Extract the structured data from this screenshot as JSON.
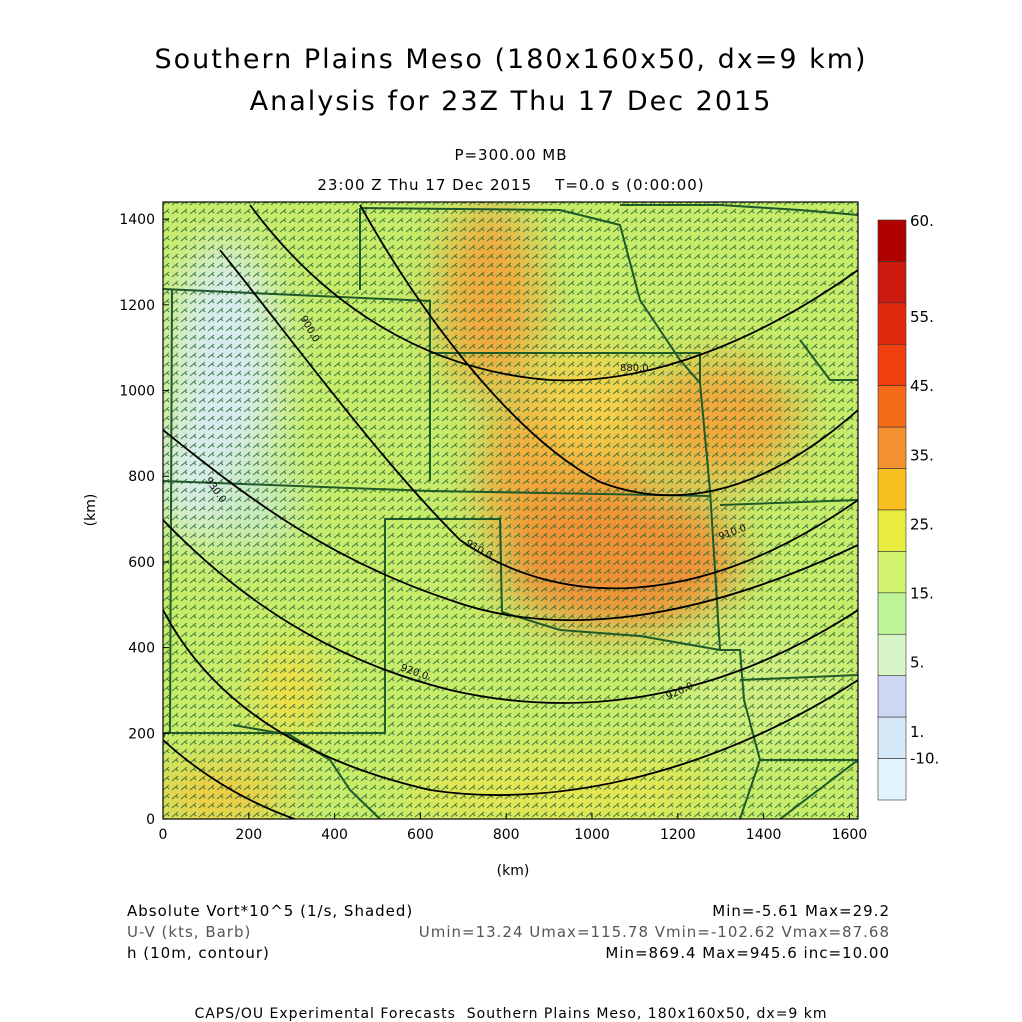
{
  "title_line1": "Southern Plains Meso (180x160x50, dx=9 km)",
  "title_line2": "Analysis for 23Z Thu 17 Dec 2015",
  "level_label": "P=300.00 MB",
  "time_label": "23:00 Z Thu 17 Dec 2015    T=0.0 s (0:00:00)",
  "x_axis": {
    "label": "(km)",
    "ticks": [
      0,
      200,
      400,
      600,
      800,
      1000,
      1200,
      1400,
      1600
    ],
    "range": [
      0,
      1620
    ]
  },
  "y_axis": {
    "label": "(km)",
    "ticks": [
      0,
      200,
      400,
      600,
      800,
      1000,
      1200,
      1400
    ],
    "range": [
      0,
      1440
    ]
  },
  "colorbar": {
    "labels": [
      "60.",
      "55.",
      "45.",
      "35.",
      "25.",
      "15.",
      "5.",
      "1.",
      "-10."
    ],
    "colors_top_to_bottom": [
      "#b00000",
      "#cc1a10",
      "#e02a10",
      "#f04010",
      "#f46a18",
      "#f59030",
      "#f7c020",
      "#e8ec40",
      "#d2f470",
      "#bff598",
      "#d8f5c8",
      "#cdd6f2",
      "#d4e8f8",
      "#e2f4fc"
    ]
  },
  "contour_labels": [
    "880.0",
    "890.0",
    "900.0",
    "910.0",
    "920.0",
    "930.0"
  ],
  "legend": {
    "line1_left": "Absolute Vort*10^5 (1/s, Shaded)",
    "line1_right": "Min=-5.61 Max=29.2",
    "line2_left": "U-V (kts, Barb)",
    "line2_right": "Umin=13.24 Umax=115.78 Vmin=-102.62 Vmax=87.68",
    "line3_left": "h (10m, contour)",
    "line3_right": "Min=869.4 Max=945.6 inc=10.00"
  },
  "footer": "CAPS/OU Experimental Forecasts  Southern Plains Meso, 180x160x50, dx=9 km",
  "colors": {
    "contour": "#000000",
    "border": "#1f5a2a",
    "barb": "#2f6b3b",
    "base_shade": "#c6ec6a"
  }
}
